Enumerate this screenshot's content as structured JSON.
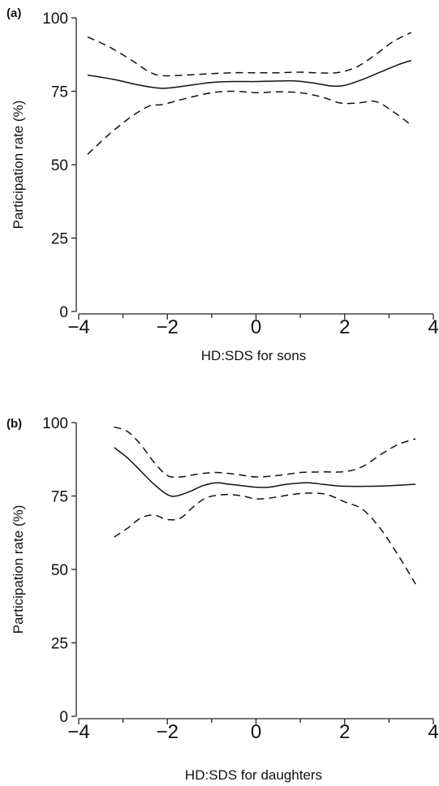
{
  "chart_data": [
    {
      "panel_label": "(a)",
      "type": "line",
      "xlabel": "HD:SDS for sons",
      "ylabel": "Participation rate (%)",
      "xlim": [
        -4,
        4
      ],
      "ylim": [
        0,
        100
      ],
      "xticks": [
        -4,
        -2,
        0,
        2,
        4
      ],
      "xminor": [
        -3,
        -1,
        1,
        3
      ],
      "yticks": [
        0,
        25,
        50,
        75,
        100
      ],
      "series": [
        {
          "style": "solid",
          "x": [
            -3.8,
            -3.2,
            -2.6,
            -2.1,
            -1.6,
            -1.0,
            -0.5,
            0.0,
            0.5,
            0.9,
            1.3,
            1.7,
            2.0,
            2.4,
            2.8,
            3.2,
            3.5
          ],
          "y": [
            80.5,
            79,
            77,
            76,
            76.8,
            78,
            78.3,
            78.3,
            78.5,
            78.5,
            77.8,
            76.8,
            77,
            79,
            81.5,
            84,
            85.5
          ]
        },
        {
          "style": "dashed",
          "x": [
            -3.8,
            -3.3,
            -2.8,
            -2.4,
            -2.1,
            -1.6,
            -1.0,
            -0.5,
            0.0,
            0.5,
            1.0,
            1.5,
            1.9,
            2.3,
            2.7,
            3.1,
            3.5
          ],
          "y": [
            93.5,
            90,
            85.5,
            81.5,
            80.3,
            80.5,
            81,
            81.3,
            81.3,
            81.3,
            81.5,
            81.2,
            81.5,
            83.5,
            87.5,
            92,
            95
          ]
        },
        {
          "style": "dashed",
          "x": [
            -3.8,
            -3.3,
            -2.8,
            -2.4,
            -2.1,
            -1.6,
            -1.0,
            -0.5,
            0.0,
            0.5,
            1.0,
            1.5,
            1.9,
            2.3,
            2.7,
            3.1,
            3.5
          ],
          "y": [
            53.5,
            60.5,
            66.5,
            70,
            70.5,
            72.5,
            74.5,
            75,
            74.5,
            74.8,
            74.5,
            73,
            71,
            71,
            71.5,
            68,
            63.5
          ]
        }
      ]
    },
    {
      "panel_label": "(b)",
      "type": "line",
      "xlabel": "HD:SDS for daughters",
      "ylabel": "Participation rate (%)",
      "xlim": [
        -4,
        4
      ],
      "ylim": [
        0,
        100
      ],
      "xticks": [
        -4,
        -2,
        0,
        2,
        4
      ],
      "xminor": [
        -3,
        -1,
        1,
        3
      ],
      "yticks": [
        0,
        25,
        50,
        75,
        100
      ],
      "series": [
        {
          "style": "solid",
          "x": [
            -3.2,
            -2.9,
            -2.6,
            -2.3,
            -2.0,
            -1.8,
            -1.5,
            -1.2,
            -0.9,
            -0.6,
            -0.3,
            0.0,
            0.3,
            0.6,
            0.9,
            1.2,
            1.5,
            1.8,
            2.1,
            2.5,
            3.0,
            3.6
          ],
          "y": [
            91.5,
            88,
            83.5,
            79,
            75.5,
            75,
            76.5,
            78.5,
            79.5,
            79,
            78.5,
            78,
            78,
            78.8,
            79.3,
            79.5,
            79,
            78.5,
            78.3,
            78.3,
            78.5,
            79
          ]
        },
        {
          "style": "dashed",
          "x": [
            -3.2,
            -2.9,
            -2.6,
            -2.3,
            -2.0,
            -1.7,
            -1.3,
            -0.9,
            -0.5,
            0.0,
            0.5,
            1.0,
            1.5,
            2.0,
            2.4,
            2.8,
            3.2,
            3.6
          ],
          "y": [
            98.5,
            97,
            92.5,
            86.5,
            82,
            81.5,
            82.5,
            83,
            82.5,
            81.5,
            82,
            83,
            83.2,
            83.3,
            85,
            89,
            92.5,
            94.5
          ]
        },
        {
          "style": "dashed",
          "x": [
            -3.2,
            -2.9,
            -2.6,
            -2.3,
            -2.0,
            -1.7,
            -1.4,
            -1.1,
            -0.7,
            -0.3,
            0.0,
            0.4,
            0.8,
            1.2,
            1.6,
            2.0,
            2.4,
            2.8,
            3.2,
            3.6
          ],
          "y": [
            61,
            64,
            67.5,
            68.5,
            67,
            67.5,
            71.5,
            74.5,
            75.5,
            75,
            74,
            74.5,
            75.5,
            76,
            75.5,
            73,
            70.5,
            64,
            55,
            45
          ]
        }
      ]
    }
  ]
}
